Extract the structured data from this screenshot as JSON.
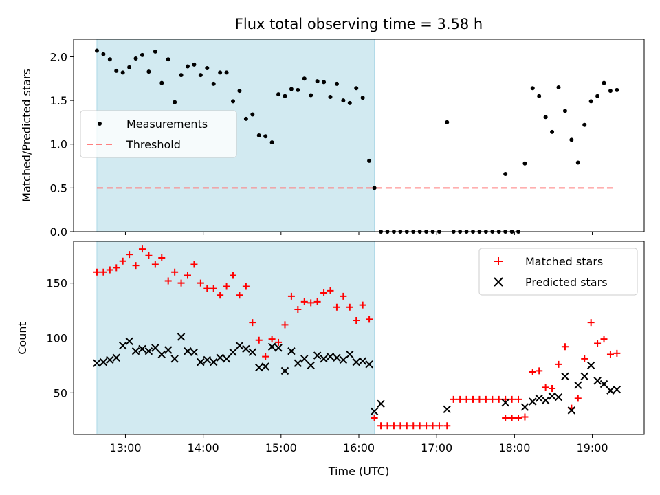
{
  "colors": {
    "shade": "#add8e6",
    "measurement": "#000000",
    "threshold": "#ff7f7f",
    "matched": "#ff0000",
    "predicted": "#000000"
  },
  "chart_data": [
    {
      "type": "scatter",
      "title": "Flux total observing time = 3.58 h",
      "xlabel": "",
      "ylabel": "Matched/Predicted stars",
      "xlim": [
        "12:20",
        "19:40"
      ],
      "ylim": [
        0,
        2.2
      ],
      "yticks": [
        "0.0",
        "0.5",
        "1.0",
        "1.5",
        "2.0"
      ],
      "shaded_interval": [
        "12:38",
        "16:12"
      ],
      "legend_position": "center-left",
      "threshold": {
        "name": "Threshold",
        "y": 0.5,
        "x": [
          "12:38",
          "19:18"
        ]
      },
      "series": [
        {
          "name": "Measurements",
          "points": [
            [
              "12:38",
              2.07
            ],
            [
              "12:43",
              2.03
            ],
            [
              "12:48",
              1.97
            ],
            [
              "12:53",
              1.84
            ],
            [
              "12:58",
              1.82
            ],
            [
              "13:03",
              1.88
            ],
            [
              "13:08",
              1.98
            ],
            [
              "13:13",
              2.02
            ],
            [
              "13:18",
              1.83
            ],
            [
              "13:23",
              2.06
            ],
            [
              "13:28",
              1.7
            ],
            [
              "13:33",
              1.97
            ],
            [
              "13:38",
              1.48
            ],
            [
              "13:43",
              1.79
            ],
            [
              "13:48",
              1.89
            ],
            [
              "13:53",
              1.91
            ],
            [
              "13:58",
              1.79
            ],
            [
              "14:03",
              1.87
            ],
            [
              "14:08",
              1.69
            ],
            [
              "14:13",
              1.82
            ],
            [
              "14:18",
              1.82
            ],
            [
              "14:23",
              1.49
            ],
            [
              "14:28",
              1.61
            ],
            [
              "14:33",
              1.29
            ],
            [
              "14:38",
              1.34
            ],
            [
              "14:43",
              1.1
            ],
            [
              "14:48",
              1.09
            ],
            [
              "14:53",
              1.02
            ],
            [
              "14:58",
              1.57
            ],
            [
              "15:03",
              1.55
            ],
            [
              "15:08",
              1.63
            ],
            [
              "15:13",
              1.62
            ],
            [
              "15:18",
              1.75
            ],
            [
              "15:23",
              1.56
            ],
            [
              "15:28",
              1.72
            ],
            [
              "15:33",
              1.71
            ],
            [
              "15:38",
              1.54
            ],
            [
              "15:43",
              1.69
            ],
            [
              "15:48",
              1.5
            ],
            [
              "15:53",
              1.47
            ],
            [
              "15:58",
              1.64
            ],
            [
              "16:03",
              1.53
            ],
            [
              "16:08",
              0.81
            ],
            [
              "16:12",
              0.5
            ],
            [
              "16:17",
              0.0
            ],
            [
              "16:22",
              0.0
            ],
            [
              "16:27",
              0.0
            ],
            [
              "16:32",
              0.0
            ],
            [
              "16:37",
              0.0
            ],
            [
              "16:42",
              0.0
            ],
            [
              "16:47",
              0.0
            ],
            [
              "16:52",
              0.0
            ],
            [
              "16:57",
              0.0
            ],
            [
              "17:02",
              0.0
            ],
            [
              "17:08",
              1.25
            ],
            [
              "17:13",
              0.0
            ],
            [
              "17:18",
              0.0
            ],
            [
              "17:23",
              0.0
            ],
            [
              "17:28",
              0.0
            ],
            [
              "17:33",
              0.0
            ],
            [
              "17:38",
              0.0
            ],
            [
              "17:43",
              0.0
            ],
            [
              "17:48",
              0.0
            ],
            [
              "17:53",
              0.0
            ],
            [
              "17:58",
              0.0
            ],
            [
              "18:03",
              0.0
            ],
            [
              "17:53",
              0.66
            ],
            [
              "18:08",
              0.78
            ],
            [
              "18:14",
              1.64
            ],
            [
              "18:19",
              1.55
            ],
            [
              "18:24",
              1.31
            ],
            [
              "18:29",
              1.14
            ],
            [
              "18:34",
              1.65
            ],
            [
              "18:39",
              1.38
            ],
            [
              "18:44",
              1.05
            ],
            [
              "18:49",
              0.79
            ],
            [
              "18:54",
              1.22
            ],
            [
              "18:59",
              1.49
            ],
            [
              "19:04",
              1.55
            ],
            [
              "19:09",
              1.7
            ],
            [
              "19:14",
              1.61
            ],
            [
              "19:19",
              1.62
            ]
          ]
        }
      ]
    },
    {
      "type": "scatter",
      "title": "",
      "xlabel": "Time (UTC)",
      "ylabel": "Count",
      "xlim": [
        "12:20",
        "19:40"
      ],
      "ylim": [
        12,
        188
      ],
      "xticks": [
        "13:00",
        "14:00",
        "15:00",
        "16:00",
        "17:00",
        "18:00",
        "19:00"
      ],
      "yticks": [
        "50",
        "100",
        "150"
      ],
      "shaded_interval": [
        "12:38",
        "16:12"
      ],
      "legend_position": "top-right",
      "series": [
        {
          "name": "Matched stars",
          "marker": "plus",
          "points": [
            [
              "12:38",
              160
            ],
            [
              "12:43",
              160
            ],
            [
              "12:48",
              162
            ],
            [
              "12:53",
              164
            ],
            [
              "12:58",
              170
            ],
            [
              "13:03",
              176
            ],
            [
              "13:08",
              166
            ],
            [
              "13:13",
              181
            ],
            [
              "13:18",
              175
            ],
            [
              "13:23",
              167
            ],
            [
              "13:28",
              173
            ],
            [
              "13:33",
              152
            ],
            [
              "13:38",
              160
            ],
            [
              "13:43",
              150
            ],
            [
              "13:48",
              157
            ],
            [
              "13:53",
              167
            ],
            [
              "13:58",
              150
            ],
            [
              "14:03",
              145
            ],
            [
              "14:08",
              145
            ],
            [
              "14:13",
              139
            ],
            [
              "14:18",
              147
            ],
            [
              "14:23",
              157
            ],
            [
              "14:28",
              139
            ],
            [
              "14:33",
              147
            ],
            [
              "14:38",
              114
            ],
            [
              "14:43",
              98
            ],
            [
              "14:48",
              83
            ],
            [
              "14:53",
              99
            ],
            [
              "14:58",
              96
            ],
            [
              "15:03",
              112
            ],
            [
              "15:08",
              138
            ],
            [
              "15:13",
              126
            ],
            [
              "15:18",
              133
            ],
            [
              "15:23",
              132
            ],
            [
              "15:28",
              133
            ],
            [
              "15:33",
              141
            ],
            [
              "15:38",
              143
            ],
            [
              "15:43",
              128
            ],
            [
              "15:48",
              138
            ],
            [
              "15:53",
              128
            ],
            [
              "15:58",
              116
            ],
            [
              "16:03",
              130
            ],
            [
              "16:08",
              117
            ],
            [
              "16:12",
              27
            ],
            [
              "16:17",
              20
            ],
            [
              "16:22",
              20
            ],
            [
              "16:27",
              20
            ],
            [
              "16:32",
              20
            ],
            [
              "16:37",
              20
            ],
            [
              "16:42",
              20
            ],
            [
              "16:47",
              20
            ],
            [
              "16:52",
              20
            ],
            [
              "16:57",
              20
            ],
            [
              "17:02",
              20
            ],
            [
              "17:08",
              20
            ],
            [
              "17:13",
              44
            ],
            [
              "17:18",
              44
            ],
            [
              "17:23",
              44
            ],
            [
              "17:28",
              44
            ],
            [
              "17:33",
              44
            ],
            [
              "17:38",
              44
            ],
            [
              "17:43",
              44
            ],
            [
              "17:48",
              44
            ],
            [
              "17:53",
              44
            ],
            [
              "17:58",
              44
            ],
            [
              "18:03",
              44
            ],
            [
              "17:53",
              27
            ],
            [
              "17:58",
              27
            ],
            [
              "18:03",
              27
            ],
            [
              "18:08",
              28
            ],
            [
              "18:14",
              69
            ],
            [
              "18:19",
              70
            ],
            [
              "18:24",
              55
            ],
            [
              "18:29",
              54
            ],
            [
              "18:34",
              76
            ],
            [
              "18:39",
              92
            ],
            [
              "18:44",
              36
            ],
            [
              "18:49",
              45
            ],
            [
              "18:54",
              81
            ],
            [
              "18:59",
              114
            ],
            [
              "19:04",
              95
            ],
            [
              "19:09",
              99
            ],
            [
              "19:14",
              85
            ],
            [
              "19:19",
              86
            ]
          ]
        },
        {
          "name": "Predicted stars",
          "marker": "x",
          "points": [
            [
              "12:38",
              77
            ],
            [
              "12:43",
              78
            ],
            [
              "12:48",
              80
            ],
            [
              "12:53",
              82
            ],
            [
              "12:58",
              93
            ],
            [
              "13:03",
              97
            ],
            [
              "13:08",
              88
            ],
            [
              "13:13",
              90
            ],
            [
              "13:18",
              88
            ],
            [
              "13:23",
              91
            ],
            [
              "13:28",
              85
            ],
            [
              "13:33",
              89
            ],
            [
              "13:38",
              81
            ],
            [
              "13:43",
              101
            ],
            [
              "13:48",
              88
            ],
            [
              "13:53",
              87
            ],
            [
              "13:58",
              78
            ],
            [
              "14:03",
              80
            ],
            [
              "14:08",
              78
            ],
            [
              "14:13",
              82
            ],
            [
              "14:18",
              81
            ],
            [
              "14:23",
              87
            ],
            [
              "14:28",
              93
            ],
            [
              "14:33",
              90
            ],
            [
              "14:38",
              87
            ],
            [
              "14:43",
              73
            ],
            [
              "14:48",
              74
            ],
            [
              "14:53",
              92
            ],
            [
              "14:58",
              91
            ],
            [
              "15:03",
              70
            ],
            [
              "15:08",
              88
            ],
            [
              "15:13",
              77
            ],
            [
              "15:18",
              81
            ],
            [
              "15:23",
              75
            ],
            [
              "15:28",
              84
            ],
            [
              "15:33",
              81
            ],
            [
              "15:38",
              83
            ],
            [
              "15:43",
              82
            ],
            [
              "15:48",
              80
            ],
            [
              "15:53",
              85
            ],
            [
              "15:58",
              78
            ],
            [
              "16:03",
              79
            ],
            [
              "16:08",
              76
            ],
            [
              "16:12",
              33
            ],
            [
              "16:17",
              40
            ],
            [
              "17:08",
              35
            ],
            [
              "17:53",
              41
            ],
            [
              "18:08",
              37
            ],
            [
              "18:14",
              42
            ],
            [
              "18:19",
              45
            ],
            [
              "18:24",
              43
            ],
            [
              "18:29",
              47
            ],
            [
              "18:34",
              46
            ],
            [
              "18:39",
              65
            ],
            [
              "18:44",
              34
            ],
            [
              "18:49",
              57
            ],
            [
              "18:54",
              65
            ],
            [
              "18:59",
              75
            ],
            [
              "19:04",
              61
            ],
            [
              "19:09",
              58
            ],
            [
              "19:14",
              52
            ],
            [
              "19:19",
              53
            ]
          ]
        }
      ]
    }
  ]
}
